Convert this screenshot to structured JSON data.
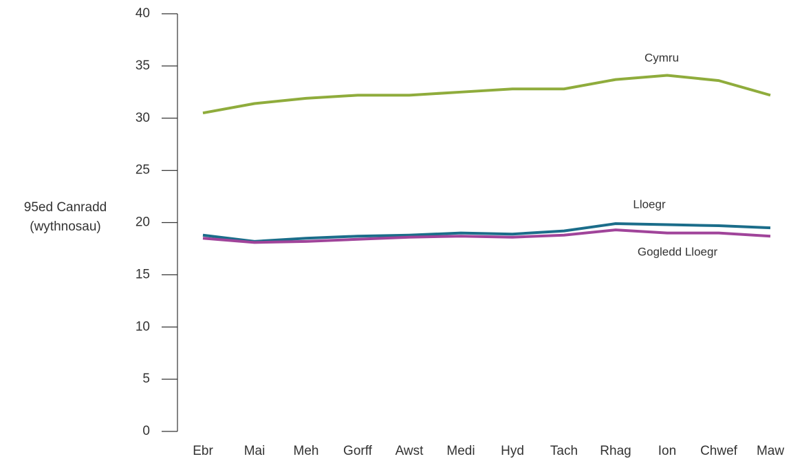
{
  "chart_data": {
    "type": "line",
    "ylabel": [
      "95ed Canradd",
      "(wythnosau)"
    ],
    "categories": [
      "Ebr",
      "Mai",
      "Meh",
      "Gorff",
      "Awst",
      "Medi",
      "Hyd",
      "Tach",
      "Rhag",
      "Ion",
      "Chwef",
      "Maw"
    ],
    "ylim": [
      0,
      40
    ],
    "yticks": [
      0,
      5,
      10,
      15,
      20,
      25,
      30,
      35,
      40
    ],
    "grid": false,
    "series": [
      {
        "name": "Cymru",
        "color": "#8fac3c",
        "values": [
          30.5,
          31.4,
          31.9,
          32.2,
          32.2,
          32.5,
          32.8,
          32.8,
          33.7,
          34.1,
          33.6,
          32.2
        ]
      },
      {
        "name": "Lloegr",
        "color": "#1b6d8a",
        "values": [
          18.8,
          18.2,
          18.5,
          18.7,
          18.8,
          19.0,
          18.9,
          19.2,
          19.9,
          19.8,
          19.7,
          19.5
        ]
      },
      {
        "name": "Gogledd Lloegr",
        "color": "#a0449a",
        "values": [
          18.5,
          18.1,
          18.2,
          18.4,
          18.6,
          18.7,
          18.6,
          18.8,
          19.3,
          19.0,
          19.0,
          18.7
        ]
      }
    ]
  }
}
